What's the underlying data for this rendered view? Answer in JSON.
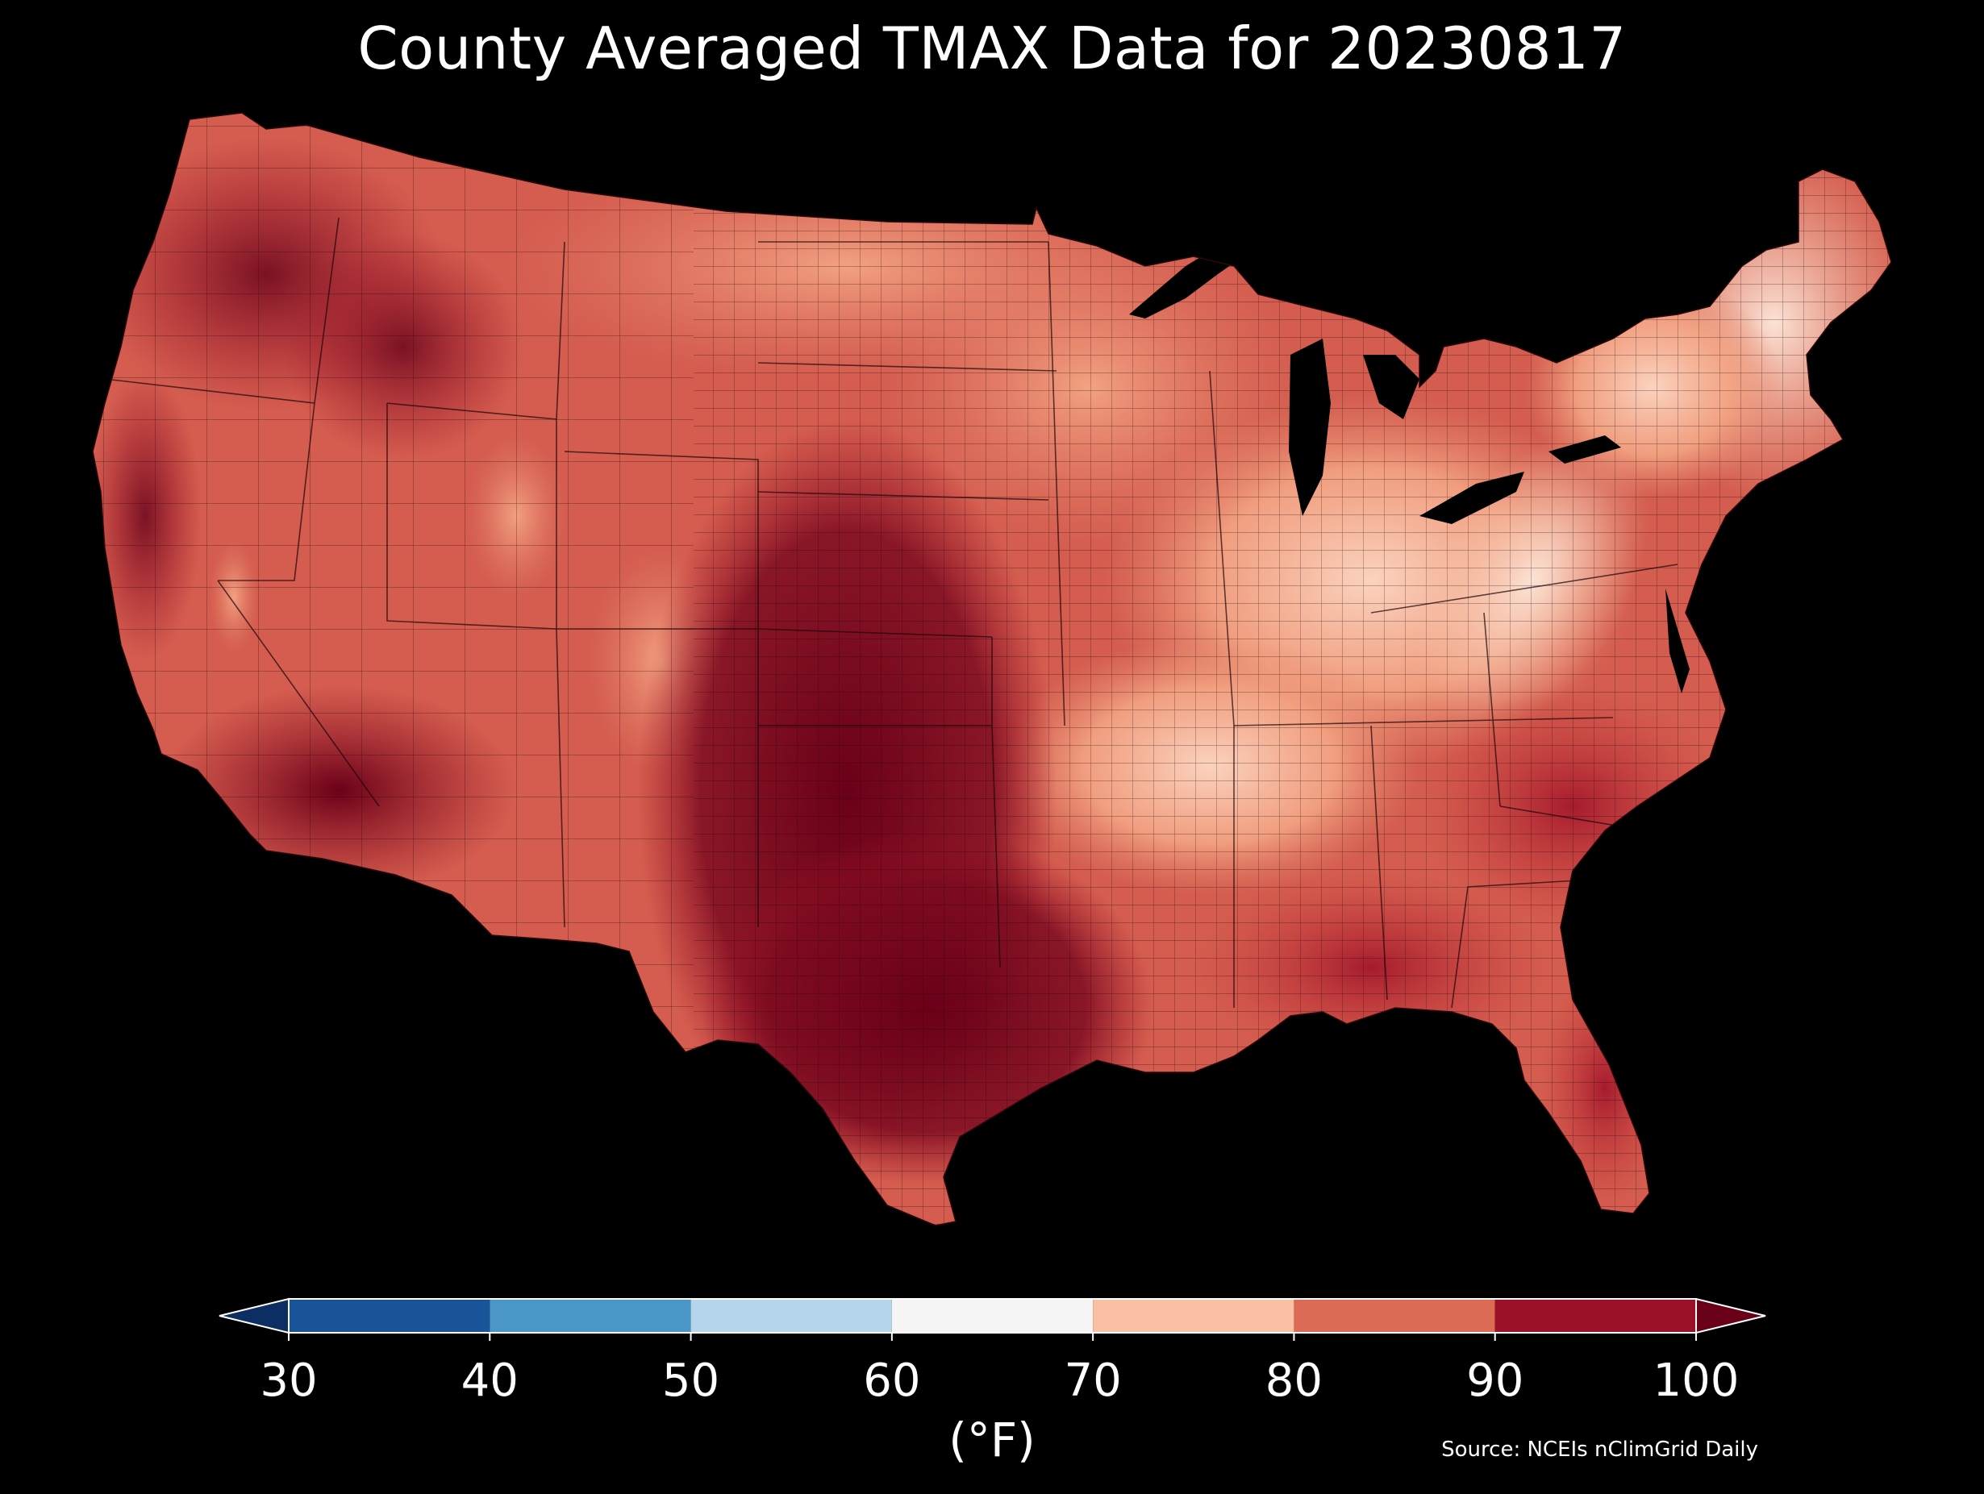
{
  "title": "County Averaged TMAX Data for 20230817",
  "colorbar": {
    "ticks": [
      "30",
      "40",
      "50",
      "60",
      "70",
      "80",
      "90",
      "100"
    ],
    "unit": "(°F)",
    "bins": [
      {
        "min": 30,
        "max": 40,
        "color": "#1a5599"
      },
      {
        "min": 40,
        "max": 50,
        "color": "#4a97c7"
      },
      {
        "min": 50,
        "max": 60,
        "color": "#b5d6ea"
      },
      {
        "min": 60,
        "max": 70,
        "color": "#f5f5f5"
      },
      {
        "min": 70,
        "max": 80,
        "color": "#f9c0a3"
      },
      {
        "min": 80,
        "max": 90,
        "color": "#dc6b55"
      },
      {
        "min": 90,
        "max": 100,
        "color": "#9c1127"
      }
    ],
    "under_color": "#0d2e62",
    "over_color": "#6a0018"
  },
  "source": "Source: NCEIs nClimGrid Daily",
  "map": {
    "region": "Contiguous United States",
    "land_color": "#d45d4f",
    "water_color": "#000000",
    "background_color": "#000000"
  }
}
